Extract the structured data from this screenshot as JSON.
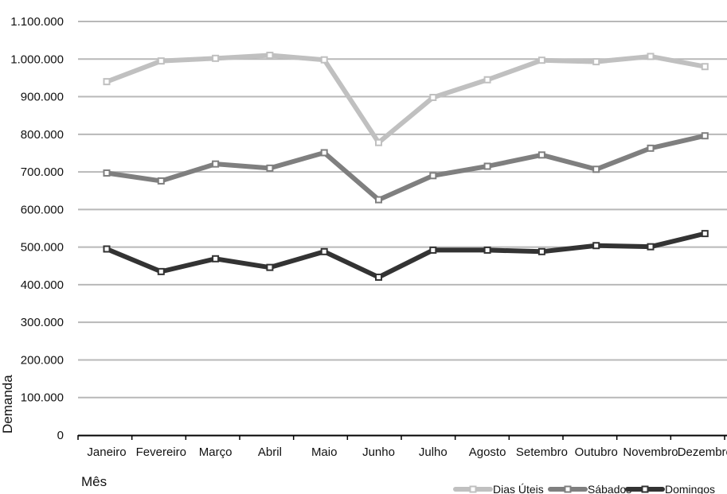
{
  "chart_data": {
    "type": "line",
    "title": "",
    "xlabel": "Mês",
    "ylabel": "Demanda",
    "categories": [
      "Janeiro",
      "Fevereiro",
      "Março",
      "Abril",
      "Maio",
      "Junho",
      "Julho",
      "Agosto",
      "Setembro",
      "Outubro",
      "Novembro",
      "Dezembro"
    ],
    "ylim": [
      0,
      1100000
    ],
    "yticks": [
      0,
      100000,
      200000,
      300000,
      400000,
      500000,
      600000,
      700000,
      800000,
      900000,
      1000000,
      1100000
    ],
    "ytick_labels": [
      "0",
      "100.000",
      "200.000",
      "300.000",
      "400.000",
      "500.000",
      "600.000",
      "700.000",
      "800.000",
      "900.000",
      "1.000.000",
      "1.100.000"
    ],
    "grid": true,
    "legend_position": "bottom-right",
    "series": [
      {
        "name": "Dias Úteis",
        "color": "#c0c0c0",
        "values": [
          940000,
          995000,
          1002000,
          1010000,
          998000,
          778000,
          898000,
          945000,
          997000,
          993000,
          1007000,
          980000
        ]
      },
      {
        "name": "Sábados",
        "color": "#7f7f7f",
        "values": [
          697000,
          676000,
          721000,
          710000,
          751000,
          626000,
          690000,
          715000,
          745000,
          707000,
          763000,
          796000
        ]
      },
      {
        "name": "Domingos",
        "color": "#333333",
        "values": [
          495000,
          435000,
          469000,
          446000,
          488000,
          420000,
          492000,
          492000,
          488000,
          504000,
          501000,
          536000
        ]
      }
    ]
  }
}
